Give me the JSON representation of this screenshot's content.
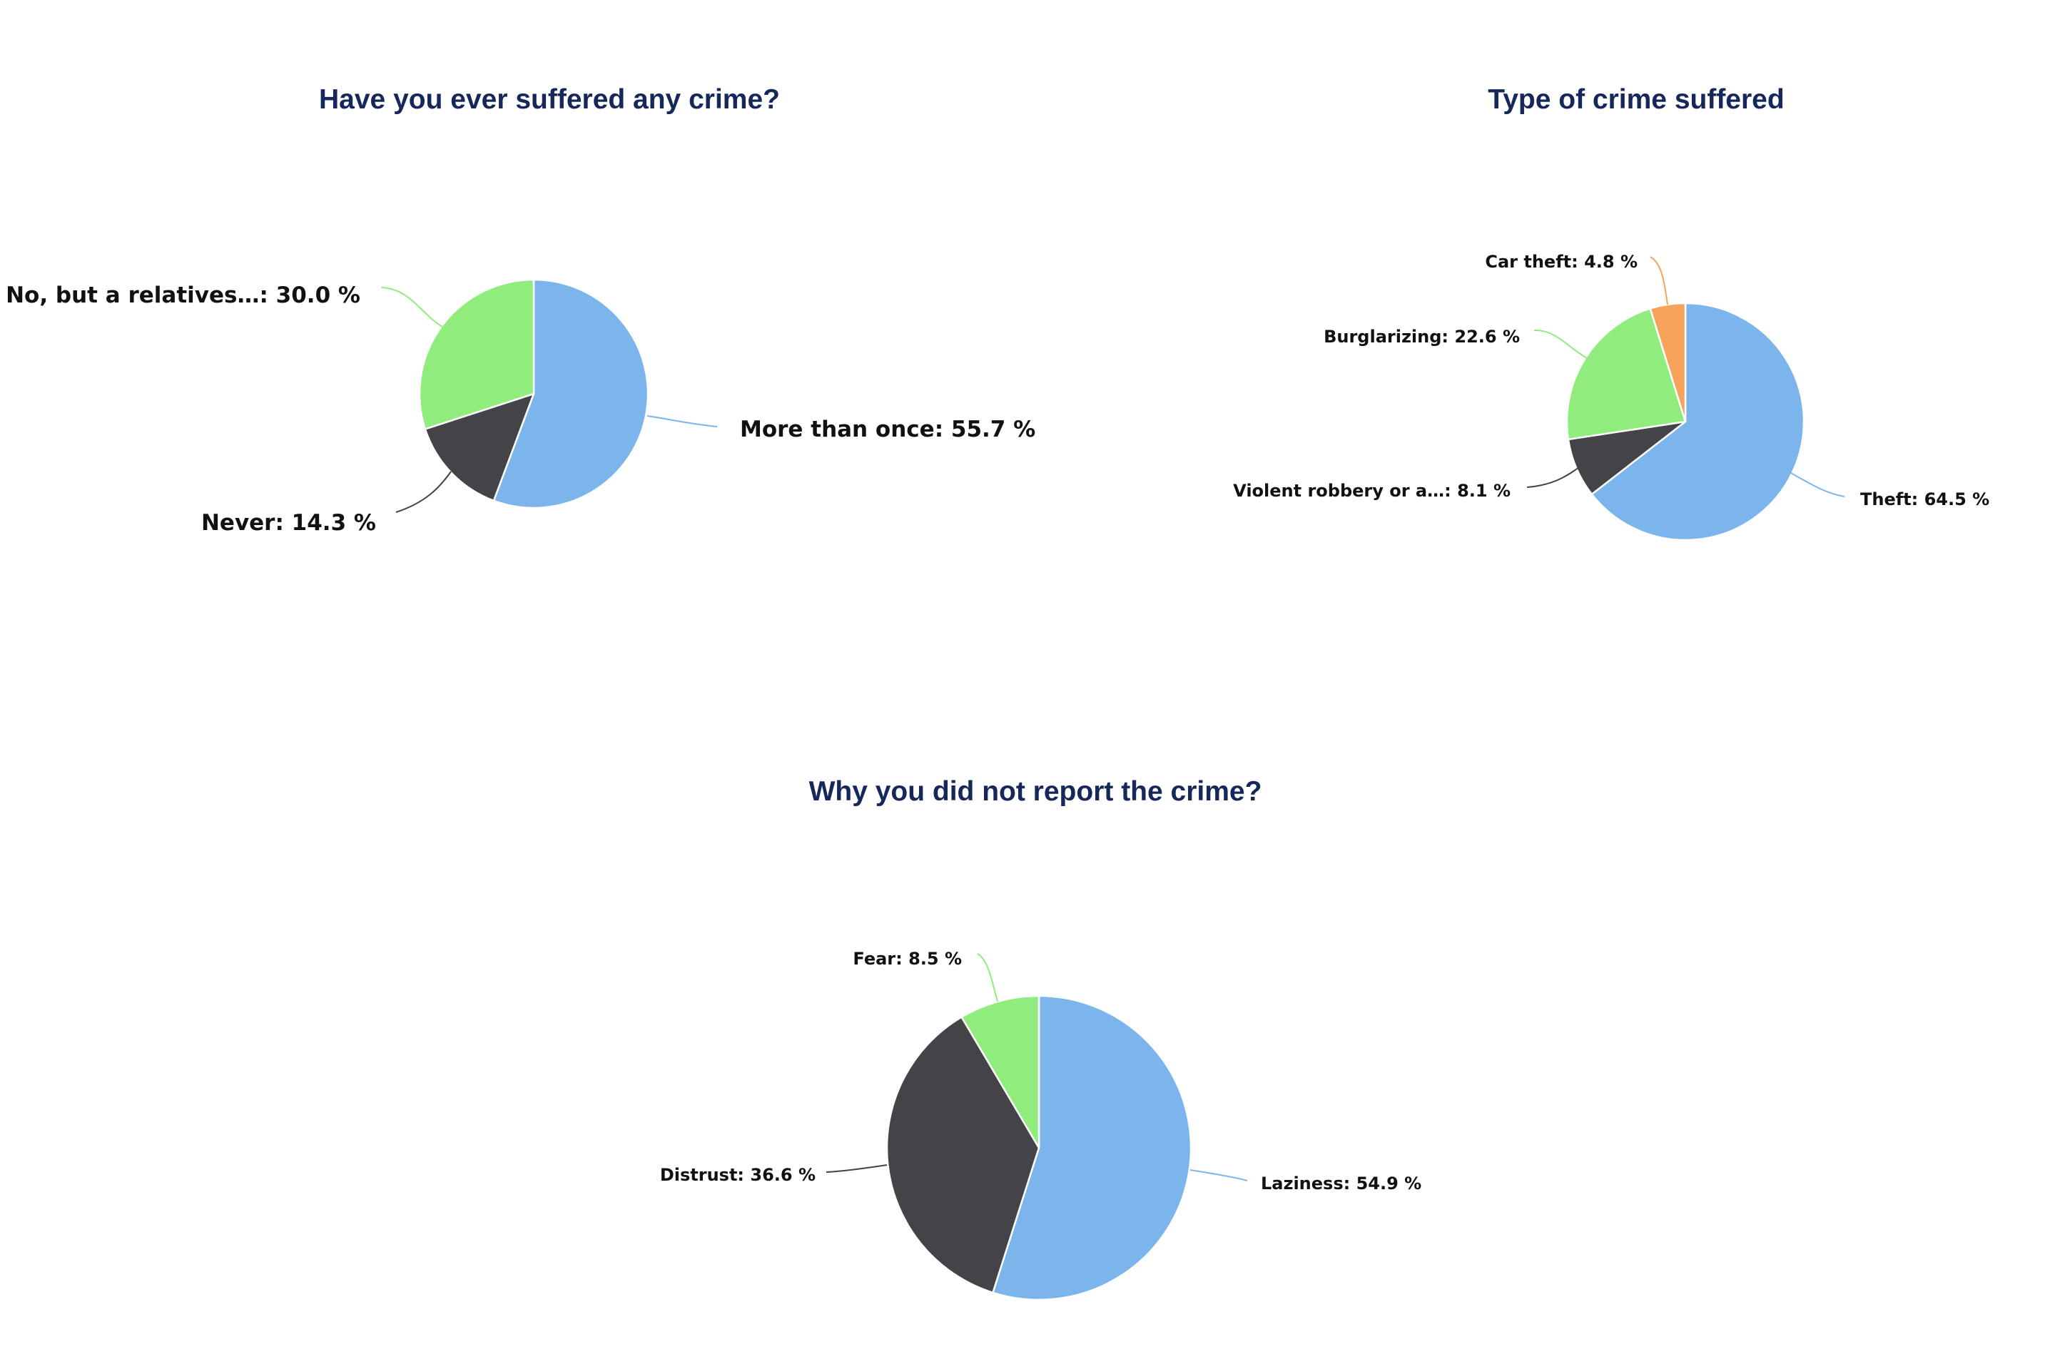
{
  "chart_data": [
    {
      "type": "pie",
      "title": "Have you ever suffered any crime?",
      "slices": [
        {
          "name": "More than once",
          "value": 55.7,
          "label": "More than once: 55.7 %",
          "color": "#7cb5ec"
        },
        {
          "name": "Never",
          "value": 14.3,
          "label": "Never: 14.3 %",
          "color": "#434348"
        },
        {
          "name": "No, but a relatives…",
          "value": 30.0,
          "label": "No, but a relatives…: 30.0 %",
          "color": "#90ed7d"
        }
      ]
    },
    {
      "type": "pie",
      "title": "Type of crime suffered",
      "slices": [
        {
          "name": "Theft",
          "value": 64.5,
          "label": "Theft: 64.5 %",
          "color": "#7cb5ec"
        },
        {
          "name": "Violent robbery or a…",
          "value": 8.1,
          "label": "Violent robbery or a…: 8.1 %",
          "color": "#434348"
        },
        {
          "name": "Burglarizing",
          "value": 22.6,
          "label": "Burglarizing: 22.6 %",
          "color": "#90ed7d"
        },
        {
          "name": "Car theft",
          "value": 4.8,
          "label": "Car theft: 4.8 %",
          "color": "#f7a35c"
        }
      ]
    },
    {
      "type": "pie",
      "title": "Why you did not report the crime?",
      "slices": [
        {
          "name": "Laziness",
          "value": 54.9,
          "label": "Laziness: 54.9 %",
          "color": "#7cb5ec"
        },
        {
          "name": "Distrust",
          "value": 36.6,
          "label": "Distrust: 36.6 %",
          "color": "#434348"
        },
        {
          "name": "Fear",
          "value": 8.5,
          "label": "Fear: 8.5 %",
          "color": "#90ed7d"
        }
      ]
    }
  ]
}
